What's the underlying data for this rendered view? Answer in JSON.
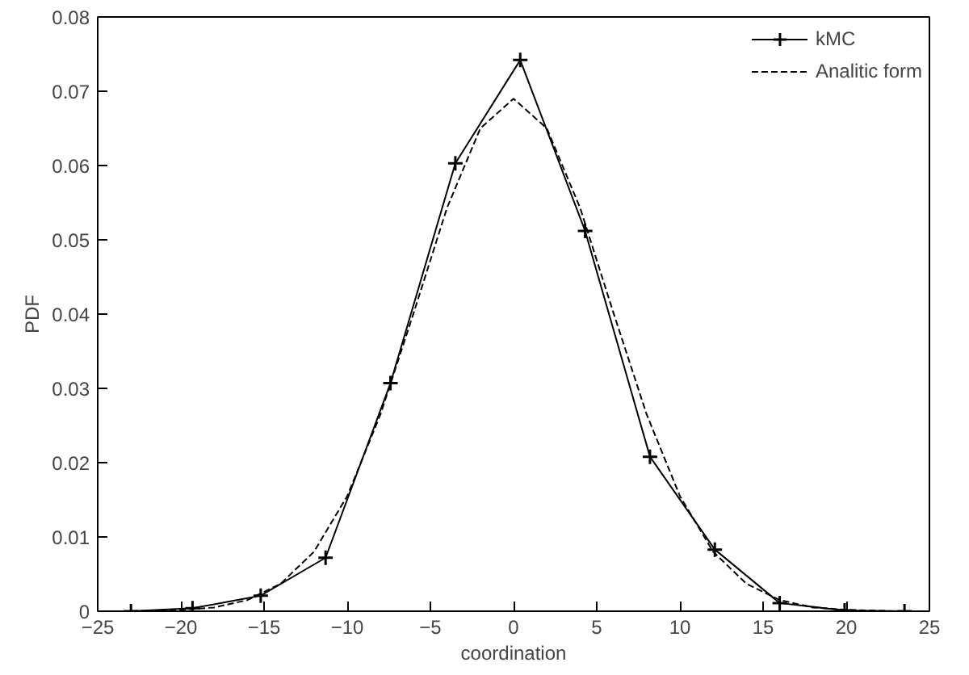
{
  "chart_data": {
    "type": "line",
    "xlabel": "coordination",
    "ylabel": "PDF",
    "xlim": [
      -25,
      25
    ],
    "ylim": [
      0,
      0.08
    ],
    "xticks": [
      -25,
      -20,
      -15,
      -10,
      -5,
      0,
      5,
      10,
      15,
      20,
      25
    ],
    "yticks": [
      0,
      0.01,
      0.02,
      0.03,
      0.04,
      0.05,
      0.06,
      0.07,
      0.08
    ],
    "grid": false,
    "legend": "top right",
    "series": [
      {
        "name": "kMC",
        "color": "#000000",
        "marker": "cross",
        "line_style": "solid",
        "x": [
          -23,
          -19.3,
          -15.2,
          -11.3,
          -7.4,
          -3.5,
          0.4,
          4.3,
          8.2,
          12.1,
          16,
          19.9,
          23.5
        ],
        "values": [
          0,
          0.0004,
          0.0021,
          0.0072,
          0.0307,
          0.0603,
          0.0742,
          0.0512,
          0.0208,
          0.0083,
          0.0011,
          0.0001,
          0
        ]
      },
      {
        "name": "Analitic form",
        "color": "#000000",
        "marker": "none",
        "line_style": "dashed",
        "x": [
          -23,
          -20,
          -18,
          -16,
          -14,
          -12,
          -10,
          -8,
          -6,
          -4,
          -2,
          0,
          2,
          4,
          6,
          8,
          10,
          12,
          14,
          16,
          18,
          20,
          23
        ],
        "values": [
          0,
          0.0002,
          0.0005,
          0.0015,
          0.0037,
          0.008,
          0.0155,
          0.0265,
          0.0402,
          0.0543,
          0.065,
          0.069,
          0.065,
          0.0543,
          0.0402,
          0.0265,
          0.0155,
          0.008,
          0.0037,
          0.0015,
          0.0005,
          0.0002,
          0
        ]
      }
    ]
  }
}
